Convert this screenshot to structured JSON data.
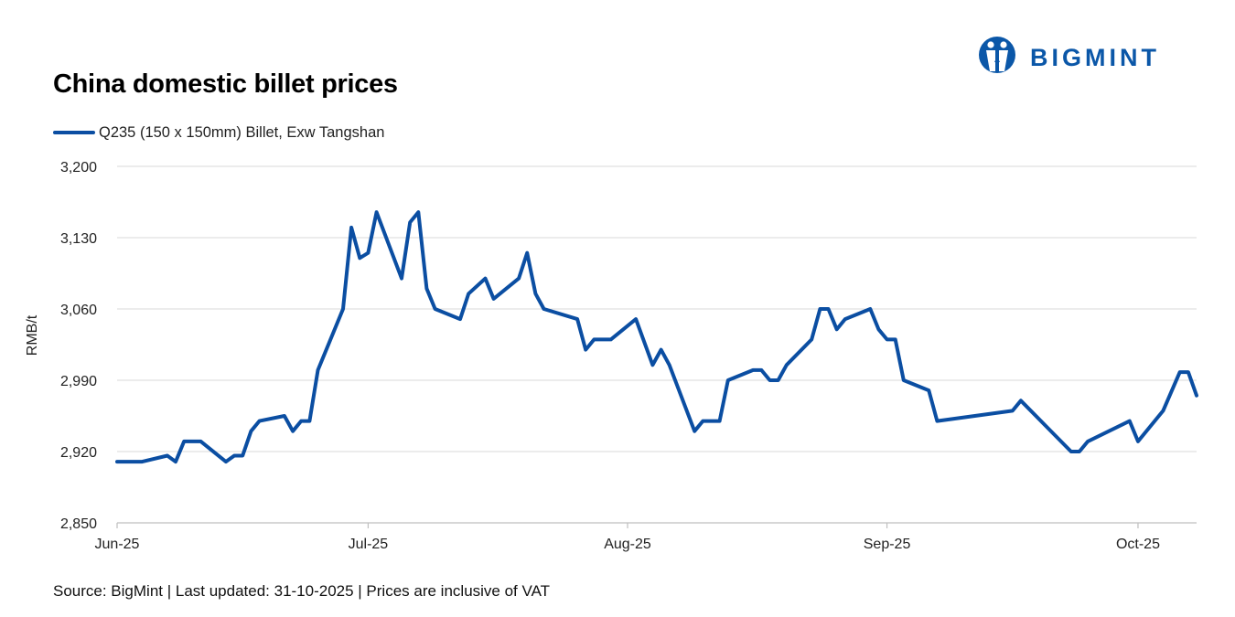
{
  "header": {
    "title": "China domestic billet prices",
    "logo_text": "BIGMINT"
  },
  "footer": {
    "source": "Source: BigMint | Last updated: 31-10-2025 | Prices are inclusive of VAT"
  },
  "colors": {
    "series": "#0b4ea2",
    "grid": "#d9d9d9",
    "axis": "#bfbfbf",
    "logo": "#0b57a8"
  },
  "icons": {
    "logo": "bigmint-logo-icon"
  },
  "chart_data": {
    "type": "line",
    "title": "China domestic billet prices",
    "xlabel": "",
    "ylabel": "RMB/t",
    "ylim": [
      2850,
      3200
    ],
    "yticks": [
      2850,
      2920,
      2990,
      3060,
      3130,
      3200
    ],
    "ytick_labels": [
      "2,850",
      "2,920",
      "2,990",
      "3,060",
      "3,130",
      "3,200"
    ],
    "xticks": [
      {
        "date": "2025-06-01",
        "label": "Jun-25"
      },
      {
        "date": "2025-07-01",
        "label": "Jul-25"
      },
      {
        "date": "2025-08-01",
        "label": "Aug-25"
      },
      {
        "date": "2025-09-01",
        "label": "Sep-25"
      },
      {
        "date": "2025-10-01",
        "label": "Oct-25"
      }
    ],
    "xlim": [
      "2025-06-01",
      "2025-10-08"
    ],
    "grid": true,
    "legend_position": "top-left",
    "series": [
      {
        "name": "Q235 (150 x 150mm) Billet, Exw Tangshan",
        "points": [
          [
            "2025-06-01",
            2910
          ],
          [
            "2025-06-04",
            2910
          ],
          [
            "2025-06-07",
            2916
          ],
          [
            "2025-06-08",
            2910
          ],
          [
            "2025-06-09",
            2930
          ],
          [
            "2025-06-11",
            2930
          ],
          [
            "2025-06-14",
            2910
          ],
          [
            "2025-06-15",
            2916
          ],
          [
            "2025-06-16",
            2916
          ],
          [
            "2025-06-17",
            2940
          ],
          [
            "2025-06-18",
            2950
          ],
          [
            "2025-06-21",
            2955
          ],
          [
            "2025-06-22",
            2940
          ],
          [
            "2025-06-23",
            2950
          ],
          [
            "2025-06-24",
            2950
          ],
          [
            "2025-06-25",
            3000
          ],
          [
            "2025-06-28",
            3060
          ],
          [
            "2025-06-29",
            3140
          ],
          [
            "2025-06-30",
            3110
          ],
          [
            "2025-07-01",
            3115
          ],
          [
            "2025-07-02",
            3155
          ],
          [
            "2025-07-05",
            3090
          ],
          [
            "2025-07-06",
            3145
          ],
          [
            "2025-07-07",
            3155
          ],
          [
            "2025-07-08",
            3080
          ],
          [
            "2025-07-09",
            3060
          ],
          [
            "2025-07-12",
            3050
          ],
          [
            "2025-07-13",
            3075
          ],
          [
            "2025-07-15",
            3090
          ],
          [
            "2025-07-16",
            3070
          ],
          [
            "2025-07-19",
            3090
          ],
          [
            "2025-07-20",
            3115
          ],
          [
            "2025-07-21",
            3075
          ],
          [
            "2025-07-22",
            3060
          ],
          [
            "2025-07-26",
            3050
          ],
          [
            "2025-07-27",
            3020
          ],
          [
            "2025-07-28",
            3030
          ],
          [
            "2025-07-30",
            3030
          ],
          [
            "2025-08-02",
            3050
          ],
          [
            "2025-08-04",
            3005
          ],
          [
            "2025-08-05",
            3020
          ],
          [
            "2025-08-06",
            3005
          ],
          [
            "2025-08-09",
            2940
          ],
          [
            "2025-08-10",
            2950
          ],
          [
            "2025-08-12",
            2950
          ],
          [
            "2025-08-13",
            2990
          ],
          [
            "2025-08-16",
            3000
          ],
          [
            "2025-08-17",
            3000
          ],
          [
            "2025-08-18",
            2990
          ],
          [
            "2025-08-19",
            2990
          ],
          [
            "2025-08-20",
            3005
          ],
          [
            "2025-08-23",
            3030
          ],
          [
            "2025-08-24",
            3060
          ],
          [
            "2025-08-25",
            3060
          ],
          [
            "2025-08-26",
            3040
          ],
          [
            "2025-08-27",
            3050
          ],
          [
            "2025-08-30",
            3060
          ],
          [
            "2025-08-31",
            3040
          ],
          [
            "2025-09-01",
            3030
          ],
          [
            "2025-09-02",
            3030
          ],
          [
            "2025-09-03",
            2990
          ],
          [
            "2025-09-06",
            2980
          ],
          [
            "2025-09-07",
            2950
          ],
          [
            "2025-09-16",
            2960
          ],
          [
            "2025-09-17",
            2970
          ],
          [
            "2025-09-23",
            2920
          ],
          [
            "2025-09-24",
            2920
          ],
          [
            "2025-09-25",
            2930
          ],
          [
            "2025-09-30",
            2950
          ],
          [
            "2025-10-01",
            2930
          ],
          [
            "2025-10-04",
            2960
          ],
          [
            "2025-10-06",
            2998
          ],
          [
            "2025-10-07",
            2998
          ],
          [
            "2025-10-08",
            2975
          ]
        ]
      }
    ]
  }
}
